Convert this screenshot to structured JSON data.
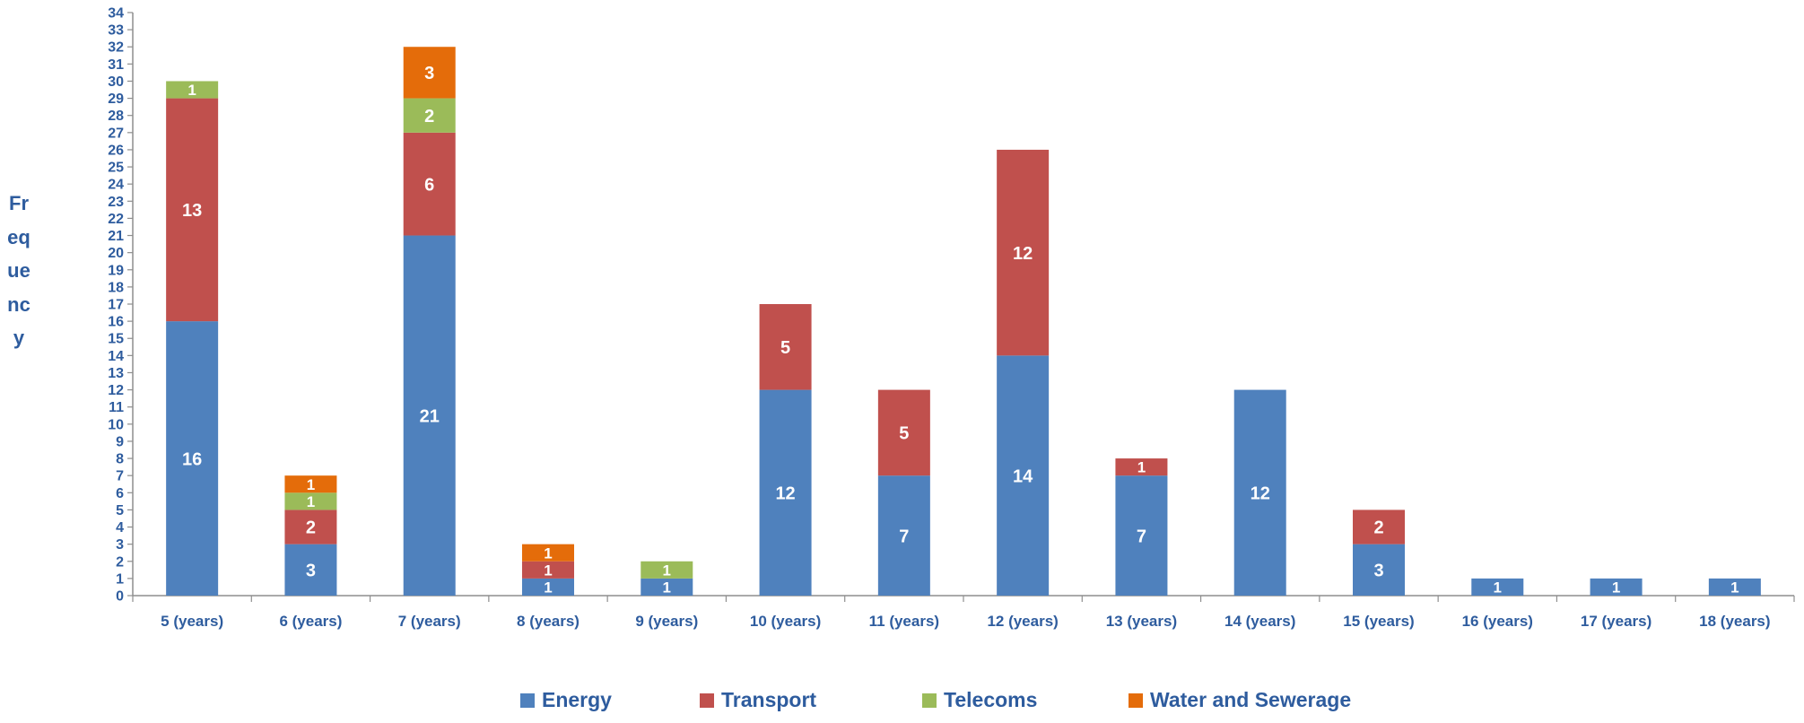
{
  "chart_data": {
    "type": "bar",
    "stacked": true,
    "ylabel": "Frequency",
    "xlabel": "",
    "ylim": [
      0,
      34
    ],
    "yticks": [
      0,
      1,
      2,
      3,
      4,
      5,
      6,
      7,
      8,
      9,
      10,
      11,
      12,
      13,
      14,
      15,
      16,
      17,
      18,
      19,
      20,
      21,
      22,
      23,
      24,
      25,
      26,
      27,
      28,
      29,
      30,
      31,
      32,
      33,
      34
    ],
    "categories": [
      "5 (years)",
      "6 (years)",
      "7 (years)",
      "8 (years)",
      "9 (years)",
      "10 (years)",
      "11 (years)",
      "12 (years)",
      "13 (years)",
      "14 (years)",
      "15 (years)",
      "16 (years)",
      "17 (years)",
      "18 (years)"
    ],
    "series": [
      {
        "name": "Energy",
        "color": "#4F81BD",
        "values": [
          16,
          3,
          21,
          1,
          1,
          12,
          7,
          14,
          7,
          12,
          3,
          1,
          1,
          1
        ]
      },
      {
        "name": "Transport",
        "color": "#C0504D",
        "values": [
          13,
          2,
          6,
          1,
          0,
          5,
          5,
          12,
          1,
          0,
          2,
          0,
          0,
          0
        ]
      },
      {
        "name": "Telecoms",
        "color": "#9BBB59",
        "values": [
          1,
          1,
          2,
          0,
          1,
          0,
          0,
          0,
          0,
          0,
          0,
          0,
          0,
          0
        ]
      },
      {
        "name": "Water and Sewerage",
        "color": "#E46C0A",
        "values": [
          0,
          1,
          3,
          1,
          0,
          0,
          0,
          0,
          0,
          0,
          0,
          0,
          0,
          0
        ]
      }
    ],
    "data_labels": [
      [
        "16",
        "3",
        "21",
        "1",
        "1",
        "12",
        "7",
        "14",
        "7",
        "12",
        "3",
        "1",
        "1",
        "1"
      ],
      [
        "13",
        "2",
        "6",
        "1",
        "",
        "5",
        "5",
        "12",
        "1",
        "",
        "2",
        "",
        "",
        ""
      ],
      [
        "1",
        "1",
        "2",
        "",
        "1",
        "",
        "",
        "",
        "",
        "",
        "",
        "",
        "",
        ""
      ],
      [
        "",
        "1",
        "3",
        "1",
        "",
        "",
        "",
        "",
        "",
        "",
        "",
        "",
        "",
        ""
      ]
    ],
    "legend_position": "bottom",
    "grid": false,
    "axis_color": "#2E5C9E"
  }
}
